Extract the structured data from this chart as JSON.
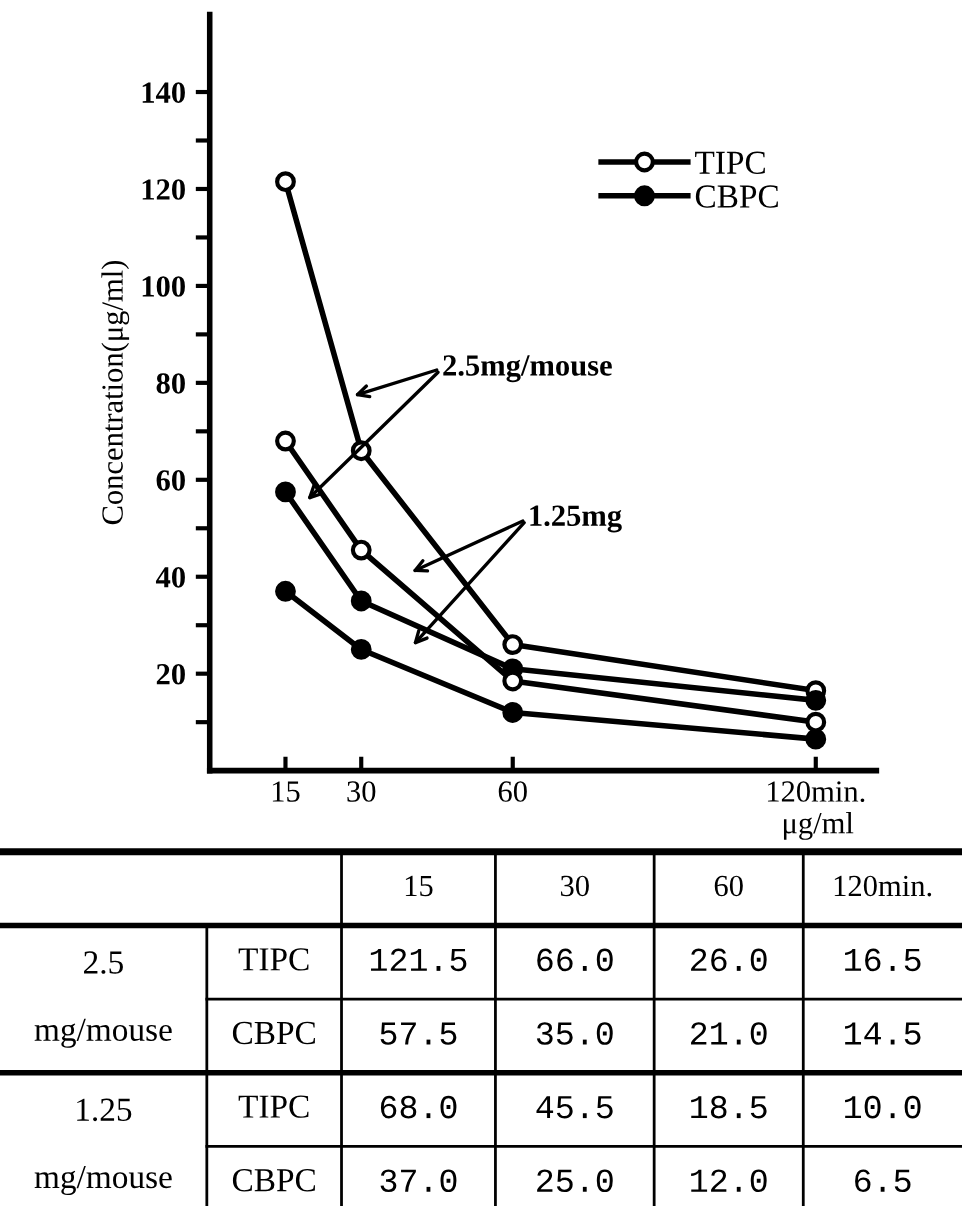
{
  "chart_data": [
    {
      "type": "line",
      "ylabel": "Concentration(μg/ml)",
      "x": [
        15,
        30,
        60,
        120
      ],
      "xlim": [
        0,
        132
      ],
      "xticks": [
        15,
        30,
        60,
        {
          "value": 120,
          "label": "120min."
        }
      ],
      "ylim": [
        0,
        156
      ],
      "yticks": [
        {
          "value": 10,
          "label": null
        },
        20,
        {
          "value": 30,
          "label": null
        },
        40,
        {
          "value": 50,
          "label": null
        },
        60,
        {
          "value": 70,
          "label": null
        },
        80,
        {
          "value": 90,
          "label": null
        },
        100,
        {
          "value": 110,
          "label": null
        },
        120,
        {
          "value": 130,
          "label": null
        },
        140
      ],
      "marker": "circle",
      "line_style": "solid",
      "grid": false,
      "legend": "top right",
      "series": [
        {
          "name": "TIPC",
          "color": "#000000",
          "values": [
            121.5,
            66.0,
            26.0,
            16.5
          ]
        },
        {
          "name": "CBPC",
          "color": "#000000",
          "values": [
            57.5,
            35.0,
            21.0,
            14.5
          ]
        },
        {
          "color": "#000000",
          "values": [
            68.0,
            45.5,
            18.5,
            10.0
          ]
        },
        {
          "color": "#000000",
          "values": [
            37.0,
            25.0,
            12.0,
            6.5
          ]
        }
      ],
      "annotations": [
        {
          "text": "2.5mg/mouse",
          "x": 27.5,
          "y": 77
        },
        {
          "text": "1.25mg",
          "x": 39,
          "y": 40.5
        }
      ]
    },
    {
      "type": "other",
      "categories": [
        "15",
        "30",
        "60",
        "120min."
      ],
      "annotations": [
        "μg/ml",
        "2.5\nmg/mouse",
        "1.25\nmg/mouse",
        "TIPC",
        "CBPC",
        "TIPC",
        "CBPC",
        "121.5",
        "66.0",
        "26.0",
        "16.5",
        "57.5",
        "35.0",
        "21.0",
        "14.5",
        "68.0",
        "45.5",
        "18.5",
        "10.0",
        "37.0",
        "25.0",
        "12.0",
        "6.5"
      ]
    }
  ]
}
